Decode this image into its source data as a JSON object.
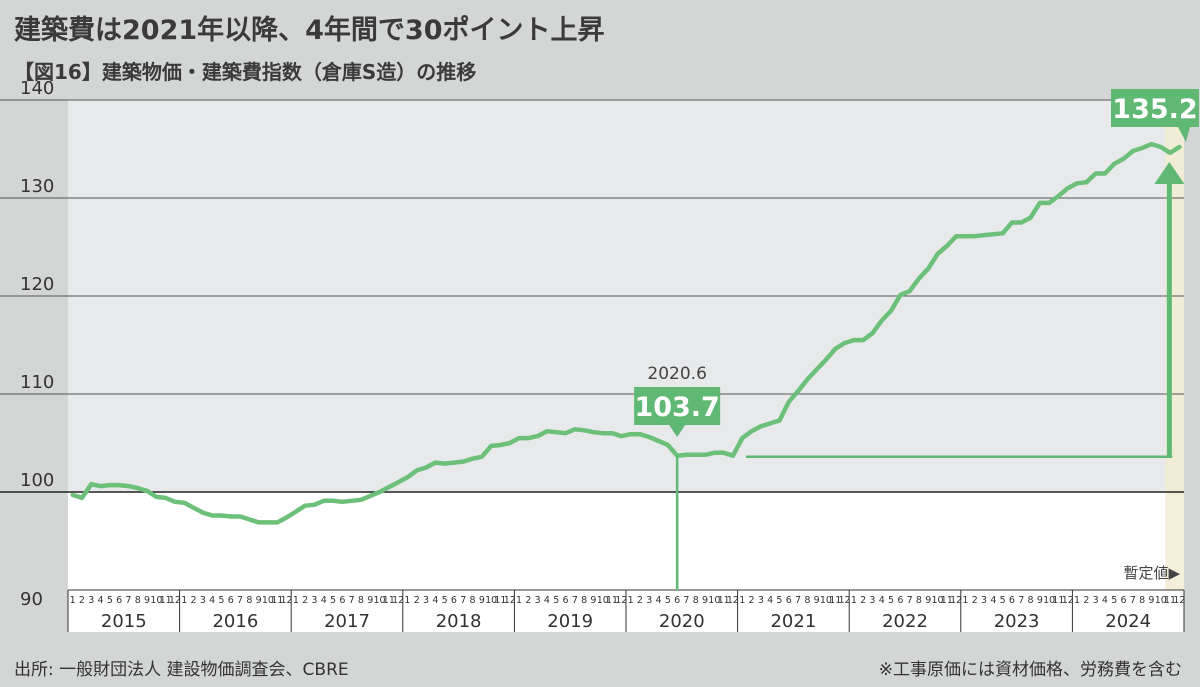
{
  "title": "建築費は2021年以降、4年間で30ポイント上昇",
  "subtitle": "【図16】建築物価・建築費指数（倉庫S造）の推移",
  "source": "出所: 一般財団法人 建設物価調査会、CBRE",
  "note": "※工事原価には資材価格、労務費を含む",
  "chart_data": {
    "type": "line",
    "title": "建築物価・建築費指数（倉庫S造）の推移",
    "ylim": [
      90,
      140
    ],
    "yticks": [
      "90",
      "100",
      "110",
      "120",
      "130",
      "140"
    ],
    "ytick_values": [
      90,
      100,
      110,
      120,
      130,
      140
    ],
    "years": [
      "2015",
      "2016",
      "2017",
      "2018",
      "2019",
      "2020",
      "2021",
      "2022",
      "2023",
      "2024"
    ],
    "month_labels": [
      "1",
      "2",
      "3",
      "4",
      "5",
      "6",
      "7",
      "8",
      "9",
      "10",
      "11",
      "12"
    ],
    "series": [
      {
        "name": "建築費指数（倉庫S造）",
        "color": "#6cc07a",
        "values": [
          99.7,
          99.4,
          100.8,
          100.6,
          100.7,
          100.7,
          100.6,
          100.4,
          100.1,
          99.5,
          99.4,
          99.0,
          98.9,
          98.4,
          97.9,
          97.6,
          97.6,
          97.5,
          97.5,
          97.2,
          96.9,
          96.9,
          96.9,
          97.4,
          98.0,
          98.6,
          98.7,
          99.1,
          99.1,
          99.0,
          99.1,
          99.2,
          99.6,
          100.0,
          100.5,
          101.0,
          101.5,
          102.2,
          102.5,
          103.0,
          102.9,
          103.0,
          103.1,
          103.4,
          103.6,
          104.7,
          104.8,
          105.0,
          105.5,
          105.5,
          105.7,
          106.2,
          106.1,
          106.0,
          106.4,
          106.3,
          106.1,
          106.0,
          106.0,
          105.7,
          105.9,
          105.9,
          105.6,
          105.2,
          104.8,
          103.7,
          103.8,
          103.8,
          103.8,
          104.0,
          104.0,
          103.7,
          105.5,
          106.2,
          106.7,
          107.0,
          107.3,
          109.2,
          110.3,
          111.5,
          112.5,
          113.5,
          114.6,
          115.2,
          115.5,
          115.5,
          116.2,
          117.5,
          118.5,
          120.1,
          120.5,
          121.8,
          122.8,
          124.3,
          125.1,
          126.1,
          126.1,
          126.1,
          126.2,
          126.3,
          126.4,
          127.5,
          127.5,
          128.0,
          129.5,
          129.5,
          130.2,
          131.0,
          131.5,
          131.6,
          132.5,
          132.5,
          133.5,
          134.0,
          134.8,
          135.1,
          135.5,
          135.2,
          134.6,
          135.2
        ]
      }
    ],
    "annotations": [
      {
        "label": "2020.6",
        "value": "103.7"
      },
      {
        "label": "",
        "value": "135.2"
      }
    ],
    "baseline": 100,
    "provisional_label": "暫定値▶"
  }
}
